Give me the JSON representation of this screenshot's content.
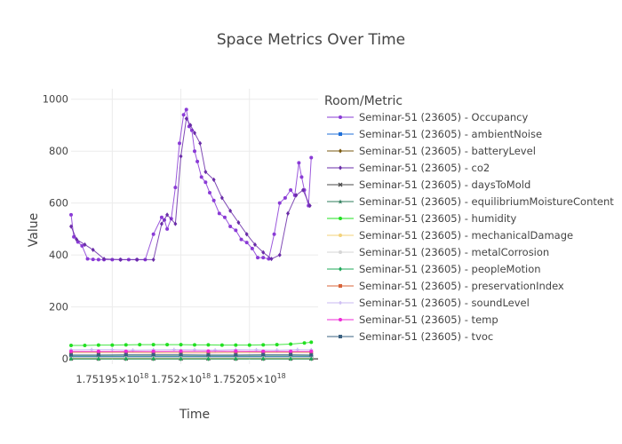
{
  "chart_data": {
    "type": "line",
    "title": "Space Metrics Over Time",
    "xlabel": "Time",
    "ylabel": "Value",
    "legend_title": "Room/Metric",
    "legend_position": "right",
    "grid": true,
    "xlim": [
      1.75192e+18,
      1.7521e+18
    ],
    "ylim": [
      -20,
      1040
    ],
    "x_ticks": [
      {
        "value": 1.75195e+18,
        "label": "1.75195×10"
      },
      {
        "value": 1.752e+18,
        "label": "1.752×10"
      },
      {
        "value": 1.75205e+18,
        "label": "1.75205×10"
      }
    ],
    "x_tick_exponent": "18",
    "y_ticks": [
      {
        "value": 0,
        "label": "0"
      },
      {
        "value": 200,
        "label": "200"
      },
      {
        "value": 400,
        "label": "400"
      },
      {
        "value": 600,
        "label": "600"
      },
      {
        "value": 800,
        "label": "800"
      },
      {
        "value": 1000,
        "label": "1000"
      }
    ],
    "series": [
      {
        "name": "Seminar-51 (23605) - Occupancy",
        "color": "#8a3bd6",
        "marker": "circle",
        "x": [
          1.75192e+18,
          1.751922e+18,
          1.751925e+18,
          1.751928e+18,
          1.751932e+18,
          1.751936e+18,
          1.75194e+18,
          1.751944e+18,
          1.75195e+18,
          1.751956e+18,
          1.751962e+18,
          1.751968e+18,
          1.751974e+18,
          1.75198e+18,
          1.751986e+18,
          1.751988e+18,
          1.75199e+18,
          1.751993e+18,
          1.751996e+18,
          1.751999e+18,
          1.752002e+18,
          1.752004e+18,
          1.752006e+18,
          1.752008e+18,
          1.75201e+18,
          1.752012e+18,
          1.752015e+18,
          1.752018e+18,
          1.752021e+18,
          1.752024e+18,
          1.752028e+18,
          1.752032e+18,
          1.752036e+18,
          1.75204e+18,
          1.752044e+18,
          1.752048e+18,
          1.752052e+18,
          1.752056e+18,
          1.75206e+18,
          1.752064e+18,
          1.752068e+18,
          1.752072e+18,
          1.752076e+18,
          1.75208e+18,
          1.752083e+18,
          1.752086e+18,
          1.752088e+18,
          1.75209e+18,
          1.752093e+18,
          1.752095e+18
        ],
        "y": [
          555,
          470,
          450,
          435,
          385,
          383,
          382,
          382,
          382,
          382,
          382,
          382,
          382,
          480,
          545,
          535,
          500,
          540,
          660,
          830,
          940,
          960,
          895,
          880,
          800,
          760,
          700,
          680,
          640,
          610,
          560,
          545,
          510,
          495,
          460,
          448,
          425,
          390,
          390,
          385,
          480,
          600,
          620,
          650,
          630,
          755,
          700,
          650,
          590,
          775
        ]
      },
      {
        "name": "Seminar-51 (23605) - ambientNoise",
        "color": "#1f6fd8",
        "marker": "square",
        "x": [
          1.75192e+18,
          1.75194e+18,
          1.75196e+18,
          1.75198e+18,
          1.752e+18,
          1.75202e+18,
          1.75204e+18,
          1.75206e+18,
          1.75208e+18,
          1.752095e+18
        ],
        "y": [
          8,
          8,
          8,
          8,
          8,
          8,
          8,
          8,
          8,
          8
        ]
      },
      {
        "name": "Seminar-51 (23605) - batteryLevel",
        "color": "#7a5a10",
        "marker": "diamond",
        "x": [
          1.75192e+18,
          1.75194e+18,
          1.75196e+18,
          1.75198e+18,
          1.752e+18,
          1.75202e+18,
          1.75204e+18,
          1.75206e+18,
          1.75208e+18,
          1.752095e+18
        ],
        "y": [
          3,
          3,
          3,
          3,
          3,
          3,
          3,
          3,
          3,
          3
        ]
      },
      {
        "name": "Seminar-51 (23605) - co2",
        "color": "#6a2ca8",
        "marker": "diamond",
        "x": [
          1.75192e+18,
          1.751924e+18,
          1.75193e+18,
          1.751936e+18,
          1.751944e+18,
          1.751956e+18,
          1.751968e+18,
          1.75198e+18,
          1.751986e+18,
          1.75199e+18,
          1.751996e+18,
          1.752e+18,
          1.752004e+18,
          1.752007e+18,
          1.75201e+18,
          1.752014e+18,
          1.752018e+18,
          1.752024e+18,
          1.75203e+18,
          1.752036e+18,
          1.752042e+18,
          1.752048e+18,
          1.752054e+18,
          1.75206e+18,
          1.752066e+18,
          1.752072e+18,
          1.752078e+18,
          1.752084e+18,
          1.752089e+18,
          1.752094e+18
        ],
        "y": [
          510,
          460,
          440,
          420,
          385,
          382,
          382,
          382,
          520,
          555,
          520,
          780,
          925,
          900,
          870,
          830,
          720,
          690,
          620,
          570,
          525,
          480,
          440,
          410,
          385,
          400,
          560,
          630,
          650,
          590
        ]
      },
      {
        "name": "Seminar-51 (23605) - daysToMold",
        "color": "#4a4a4a",
        "marker": "x",
        "x": [
          1.75192e+18,
          1.75194e+18,
          1.75196e+18,
          1.75198e+18,
          1.752e+18,
          1.75202e+18,
          1.75204e+18,
          1.75206e+18,
          1.75208e+18,
          1.752095e+18
        ],
        "y": [
          1,
          1,
          1,
          1,
          1,
          1,
          1,
          1,
          1,
          1
        ]
      },
      {
        "name": "Seminar-51 (23605) - equilibriumMoistureContent",
        "color": "#2e7d5b",
        "marker": "star",
        "x": [
          1.75192e+18,
          1.75194e+18,
          1.75196e+18,
          1.75198e+18,
          1.752e+18,
          1.75202e+18,
          1.75204e+18,
          1.75206e+18,
          1.75208e+18,
          1.752095e+18
        ],
        "y": [
          11,
          11,
          11,
          11,
          11,
          11,
          11,
          11,
          11,
          11
        ]
      },
      {
        "name": "Seminar-51 (23605) - humidity",
        "color": "#22e022",
        "marker": "circle",
        "x": [
          1.75192e+18,
          1.75193e+18,
          1.75194e+18,
          1.75195e+18,
          1.75196e+18,
          1.75197e+18,
          1.75198e+18,
          1.75199e+18,
          1.752e+18,
          1.75201e+18,
          1.75202e+18,
          1.75203e+18,
          1.75204e+18,
          1.75205e+18,
          1.75206e+18,
          1.75207e+18,
          1.75208e+18,
          1.75209e+18,
          1.752095e+18
        ],
        "y": [
          52,
          52,
          53,
          53,
          54,
          55,
          55,
          55,
          55,
          54,
          54,
          53,
          53,
          53,
          54,
          55,
          57,
          61,
          64
        ]
      },
      {
        "name": "Seminar-51 (23605) - mechanicalDamage",
        "color": "#f3d27a",
        "marker": "circle",
        "x": [
          1.75192e+18,
          1.75194e+18,
          1.75196e+18,
          1.75198e+18,
          1.752e+18,
          1.75202e+18,
          1.75204e+18,
          1.75206e+18,
          1.75208e+18,
          1.752095e+18
        ],
        "y": [
          2,
          2,
          2,
          2,
          2,
          2,
          2,
          2,
          2,
          2
        ]
      },
      {
        "name": "Seminar-51 (23605) - metalCorrosion",
        "color": "#d6d6d6",
        "marker": "circle",
        "x": [
          1.75192e+18,
          1.75194e+18,
          1.75196e+18,
          1.75198e+18,
          1.752e+18,
          1.75202e+18,
          1.75204e+18,
          1.75206e+18,
          1.75208e+18,
          1.752095e+18
        ],
        "y": [
          5,
          5,
          5,
          5,
          5,
          5,
          5,
          5,
          5,
          5
        ]
      },
      {
        "name": "Seminar-51 (23605) - peopleMotion",
        "color": "#1fa85a",
        "marker": "diamond",
        "x": [
          1.75192e+18,
          1.75194e+18,
          1.75196e+18,
          1.75198e+18,
          1.752e+18,
          1.75202e+18,
          1.75204e+18,
          1.75206e+18,
          1.75208e+18,
          1.752095e+18
        ],
        "y": [
          0,
          0,
          0,
          0,
          0,
          0,
          0,
          0,
          0,
          0
        ]
      },
      {
        "name": "Seminar-51 (23605) - preservationIndex",
        "color": "#d8643a",
        "marker": "square",
        "x": [
          1.75192e+18,
          1.75194e+18,
          1.75196e+18,
          1.75198e+18,
          1.752e+18,
          1.75202e+18,
          1.75204e+18,
          1.75206e+18,
          1.75208e+18,
          1.752095e+18
        ],
        "y": [
          25,
          25,
          25,
          24,
          24,
          24,
          25,
          25,
          25,
          25
        ]
      },
      {
        "name": "Seminar-51 (23605) - soundLevel",
        "color": "#c9b8f2",
        "marker": "cross",
        "x": [
          1.75192e+18,
          1.751935e+18,
          1.75195e+18,
          1.751965e+18,
          1.75198e+18,
          1.751995e+18,
          1.75201e+18,
          1.752025e+18,
          1.75204e+18,
          1.752055e+18,
          1.75207e+18,
          1.752085e+18,
          1.752095e+18
        ],
        "y": [
          35,
          36,
          36,
          34,
          35,
          36,
          35,
          34,
          36,
          35,
          34,
          36,
          35
        ]
      },
      {
        "name": "Seminar-51 (23605) - temp",
        "color": "#ee2ad6",
        "marker": "circle",
        "x": [
          1.75192e+18,
          1.75194e+18,
          1.75196e+18,
          1.75198e+18,
          1.752e+18,
          1.75202e+18,
          1.75204e+18,
          1.75206e+18,
          1.75208e+18,
          1.752095e+18
        ],
        "y": [
          29,
          29,
          29,
          29,
          30,
          30,
          30,
          29,
          29,
          29
        ]
      },
      {
        "name": "Seminar-51 (23605) - tvoc",
        "color": "#3a6080",
        "marker": "square",
        "x": [
          1.75192e+18,
          1.75194e+18,
          1.75196e+18,
          1.75198e+18,
          1.752e+18,
          1.75202e+18,
          1.75204e+18,
          1.75206e+18,
          1.75208e+18,
          1.752095e+18
        ],
        "y": [
          15,
          15,
          16,
          16,
          16,
          15,
          15,
          16,
          16,
          15
        ]
      }
    ]
  }
}
